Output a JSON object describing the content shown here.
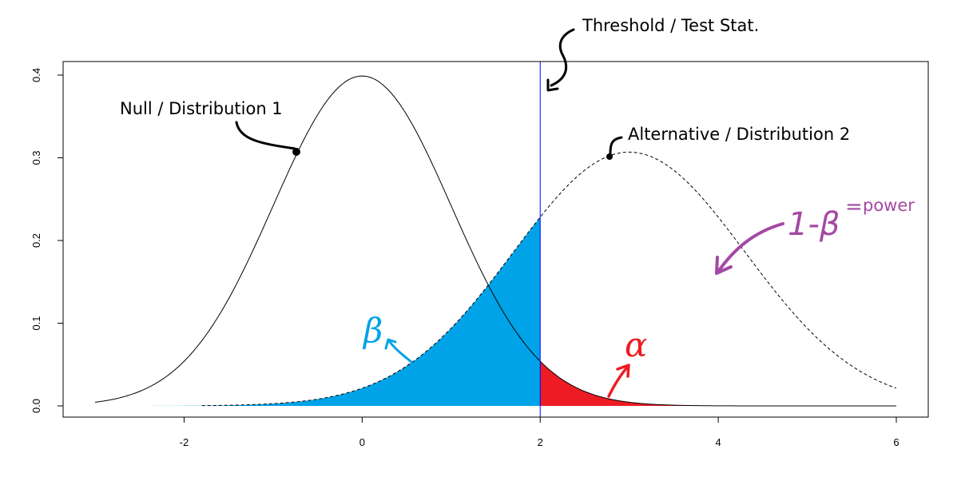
{
  "chart_data": {
    "type": "area",
    "xlim": [
      -3,
      6
    ],
    "ylim": [
      0,
      0.4
    ],
    "x_ticks": [
      -2,
      0,
      2,
      4,
      6
    ],
    "y_ticks": [
      0.0,
      0.1,
      0.2,
      0.3,
      0.4
    ],
    "x_tick_labels": [
      "-2",
      "0",
      "2",
      "4",
      "6"
    ],
    "y_tick_labels": [
      "0.0",
      "0.1",
      "0.2",
      "0.3",
      "0.4"
    ],
    "grid": false,
    "threshold": 2,
    "series": [
      {
        "name": "Null / Distribution 1",
        "distribution": "normal",
        "mean": 0,
        "sd": 1,
        "x_range": [
          -3,
          6
        ],
        "line": "solid"
      },
      {
        "name": "Alternative / Distribution 2",
        "distribution": "normal",
        "mean": 3,
        "sd": 1.3,
        "x_range": [
          -1.8,
          6
        ],
        "line": "dashed"
      }
    ],
    "shaded_regions": [
      {
        "label": "β",
        "curve": "Alternative / Distribution 2",
        "x_from": -3,
        "x_to": 2,
        "color": "#00a2e8"
      },
      {
        "label": "α",
        "curve": "Null / Distribution 1",
        "x_from": 2,
        "x_to": 6,
        "color": "#ed1c24"
      }
    ],
    "annotations": {
      "threshold": "Threshold / Test Stat.",
      "null": "Null / Distribution 1",
      "alternative": "Alternative / Distribution 2",
      "beta": "β",
      "alpha": "α",
      "power_symbol": "1-β",
      "power_equals": "=",
      "power_word": "power"
    }
  },
  "colors": {
    "beta_fill": "#00a2e8",
    "alpha_fill": "#ed1c24",
    "threshold_line": "#0000ff",
    "power_annotation": "#a349a4"
  }
}
